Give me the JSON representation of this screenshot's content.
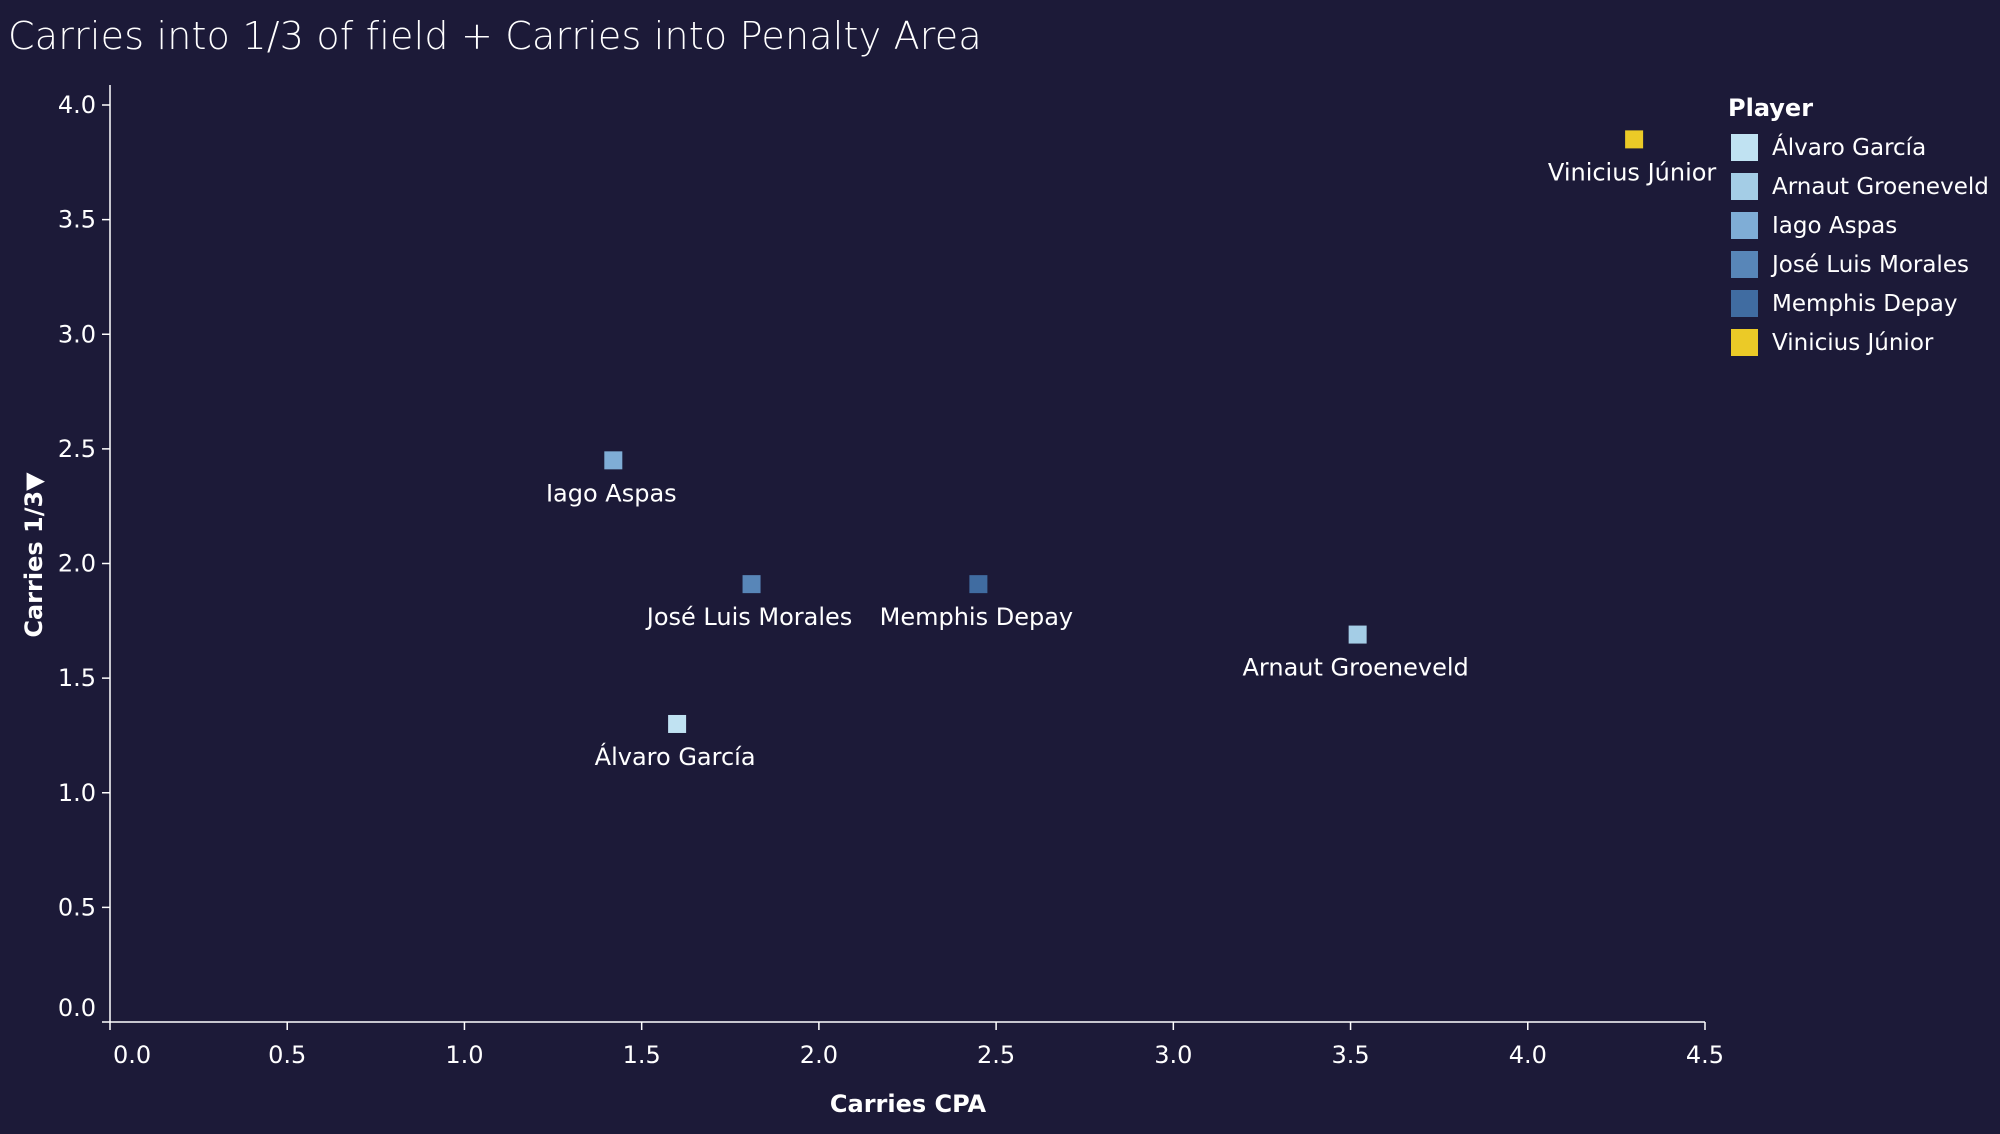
{
  "title": "Carries into 1/3 of field + Carries into Penalty Area",
  "chart_data": {
    "type": "scatter",
    "title": "Carries into 1/3 of field + Carries into Penalty Area",
    "xlabel": "Carries CPA",
    "ylabel": "Carries 1/3▼",
    "xlim": [
      0,
      4.5
    ],
    "ylim": [
      0,
      4.0
    ],
    "xticks": [
      "0.0",
      "0.5",
      "1.0",
      "1.5",
      "2.0",
      "2.5",
      "3.0",
      "3.5",
      "4.0",
      "4.5"
    ],
    "yticks": [
      "0.0",
      "0.5",
      "1.0",
      "1.5",
      "2.0",
      "2.5",
      "3.0",
      "3.5",
      "4.0"
    ],
    "grid": false,
    "legend_title": "Player",
    "legend_position": "top-right",
    "series": [
      {
        "name": "Álvaro García",
        "x": 1.6,
        "y": 1.3,
        "color": "#c0e2f2"
      },
      {
        "name": "Arnaut Groeneveld",
        "x": 3.52,
        "y": 1.69,
        "color": "#a4cde6"
      },
      {
        "name": "Iago Aspas",
        "x": 1.42,
        "y": 2.45,
        "color": "#7fadd6"
      },
      {
        "name": "José Luis Morales",
        "x": 1.81,
        "y": 1.91,
        "color": "#5886b8"
      },
      {
        "name": "Memphis Depay",
        "x": 2.45,
        "y": 1.91,
        "color": "#406ca1"
      },
      {
        "name": "Vinicius Júnior",
        "x": 4.3,
        "y": 3.85,
        "color": "#ebca27"
      }
    ]
  }
}
